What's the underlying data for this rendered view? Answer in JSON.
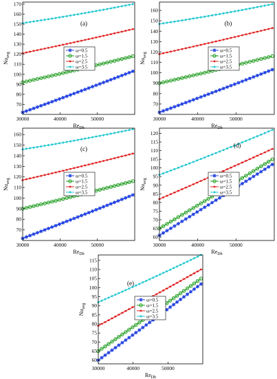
{
  "figure": {
    "series_names": [
      "ω=0.5",
      "ω=1.5",
      "ω=2.5",
      "ω=3.5"
    ],
    "series_colors": [
      "#1f3fe0",
      "#1a9a1a",
      "#e02222",
      "#22c8d0"
    ],
    "series_markers": [
      "star",
      "circle",
      "diamond",
      "point"
    ],
    "axis_color": "#000000",
    "grid": false,
    "legend_placement": "center"
  },
  "chart_data": [
    {
      "panel": "(a)",
      "type": "line",
      "xlabel": "Re",
      "xlabel_sub": "Db",
      "ylabel": "Nu",
      "ylabel_sub": "avg",
      "xlim": [
        30000,
        60000
      ],
      "ylim": [
        60,
        172
      ],
      "xticks": [
        30000,
        40000,
        50000
      ],
      "yticks": [
        70,
        80,
        90,
        100,
        110,
        120,
        130,
        140,
        150,
        160,
        170
      ],
      "series": [
        {
          "name": "ω=0.5",
          "start": [
            30000,
            62
          ],
          "end": [
            59500,
            103
          ]
        },
        {
          "name": "ω=1.5",
          "start": [
            30000,
            92
          ],
          "end": [
            59500,
            118
          ]
        },
        {
          "name": "ω=2.5",
          "start": [
            30000,
            121
          ],
          "end": [
            59500,
            145
          ]
        },
        {
          "name": "ω=3.5",
          "start": [
            30000,
            151
          ],
          "end": [
            59500,
            170
          ]
        }
      ]
    },
    {
      "panel": "(b)",
      "type": "line",
      "xlabel": "Re",
      "xlabel_sub": "Db",
      "ylabel": "Nu",
      "ylabel_sub": "avg",
      "xlim": [
        30000,
        60000
      ],
      "ylim": [
        60,
        168
      ],
      "xticks": [
        30000,
        40000,
        50000
      ],
      "yticks": [
        70,
        80,
        90,
        100,
        110,
        120,
        130,
        140,
        150,
        160
      ],
      "series": [
        {
          "name": "ω=0.5",
          "start": [
            30000,
            62
          ],
          "end": [
            59500,
            103
          ]
        },
        {
          "name": "ω=1.5",
          "start": [
            30000,
            90
          ],
          "end": [
            59500,
            116
          ]
        },
        {
          "name": "ω=2.5",
          "start": [
            30000,
            118
          ],
          "end": [
            59500,
            143
          ]
        },
        {
          "name": "ω=3.5",
          "start": [
            30000,
            147
          ],
          "end": [
            59500,
            166
          ]
        }
      ]
    },
    {
      "panel": "(c)",
      "type": "line",
      "xlabel": "Re",
      "xlabel_sub": "Db",
      "ylabel": "Nu",
      "ylabel_sub": "avg",
      "xlim": [
        30000,
        60000
      ],
      "ylim": [
        60,
        166
      ],
      "xticks": [
        30000,
        40000,
        50000
      ],
      "yticks": [
        70,
        80,
        90,
        100,
        110,
        120,
        130,
        140,
        150,
        160
      ],
      "series": [
        {
          "name": "ω=0.5",
          "start": [
            30000,
            62
          ],
          "end": [
            59500,
            103
          ]
        },
        {
          "name": "ω=1.5",
          "start": [
            30000,
            90
          ],
          "end": [
            59500,
            116
          ]
        },
        {
          "name": "ω=2.5",
          "start": [
            30000,
            117
          ],
          "end": [
            59500,
            142
          ]
        },
        {
          "name": "ω=3.5",
          "start": [
            30000,
            146
          ],
          "end": [
            59500,
            165
          ]
        }
      ]
    },
    {
      "panel": "(d)",
      "type": "line",
      "xlabel": "Re",
      "xlabel_sub": "Db",
      "ylabel": "Nu",
      "ylabel_sub": "avg",
      "xlim": [
        30000,
        60000
      ],
      "ylim": [
        58,
        123
      ],
      "xticks": [
        30000,
        40000,
        50000
      ],
      "yticks": [
        60,
        65,
        70,
        75,
        80,
        85,
        90,
        95,
        100,
        105,
        110,
        115,
        120
      ],
      "series": [
        {
          "name": "ω=0.5",
          "start": [
            30000,
            61
          ],
          "end": [
            59500,
            102
          ]
        },
        {
          "name": "ω=1.5",
          "start": [
            30000,
            65
          ],
          "end": [
            59500,
            105
          ]
        },
        {
          "name": "ω=2.5",
          "start": [
            30000,
            82
          ],
          "end": [
            59500,
            111
          ]
        },
        {
          "name": "ω=3.5",
          "start": [
            30000,
            96
          ],
          "end": [
            59500,
            122
          ]
        }
      ]
    },
    {
      "panel": "(e)",
      "type": "line",
      "xlabel": "Re",
      "xlabel_sub": "Db",
      "ylabel": "Nu",
      "ylabel_sub": "avg",
      "xlim": [
        30000,
        60000
      ],
      "ylim": [
        58,
        118
      ],
      "xticks": [
        30000,
        40000,
        50000
      ],
      "yticks": [
        60,
        65,
        70,
        75,
        80,
        85,
        90,
        95,
        100,
        105,
        110,
        115
      ],
      "series": [
        {
          "name": "ω=0.5",
          "start": [
            30000,
            60
          ],
          "end": [
            59500,
            102
          ]
        },
        {
          "name": "ω=1.5",
          "start": [
            30000,
            65
          ],
          "end": [
            59500,
            105
          ]
        },
        {
          "name": "ω=2.5",
          "start": [
            30000,
            79
          ],
          "end": [
            59500,
            110
          ]
        },
        {
          "name": "ω=3.5",
          "start": [
            30000,
            92
          ],
          "end": [
            59500,
            118
          ]
        }
      ]
    }
  ]
}
